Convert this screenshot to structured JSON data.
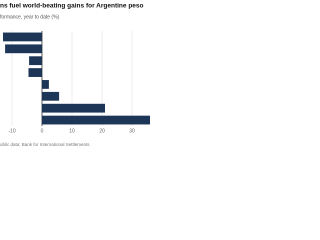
{
  "chart_data": {
    "type": "barh",
    "title": "ns fuel world-beating gains for Argentine peso",
    "subtitle": "formance, year to date (%)",
    "source": "ublic data: Bank for International Settlements",
    "categories": [
      null,
      null,
      null,
      null,
      null,
      null,
      null,
      null
    ],
    "values": [
      -13,
      -12.3,
      -4.3,
      -4.5,
      2.3,
      5.7,
      21,
      36
    ],
    "color": "#1d3557",
    "xlim": [
      -14,
      36
    ],
    "xticks": [
      -10,
      0,
      10,
      20,
      30
    ],
    "grid": true
  }
}
